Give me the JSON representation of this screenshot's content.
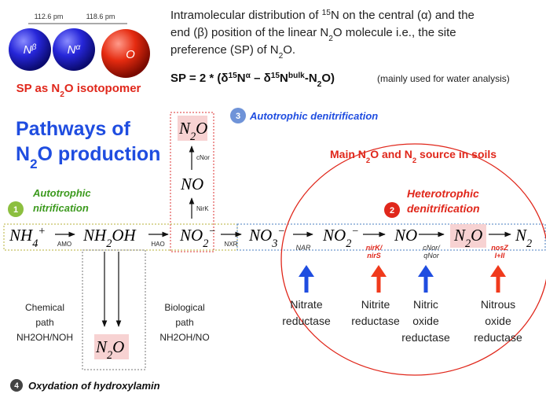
{
  "molecule": {
    "bond_lengths": [
      "112.6 pm",
      "118.6 pm"
    ],
    "atoms": [
      [
        "N",
        {
          "sup": "β"
        }
      ],
      [
        "N",
        {
          "sup": "α"
        }
      ],
      [
        "O"
      ]
    ],
    "caption": [
      "SP as N",
      {
        "sub": "2"
      },
      "O isotopomer"
    ]
  },
  "description": {
    "lines": [
      [
        "Intramolecular distribution of ",
        {
          "sup": "15"
        },
        "N on the central (α) and the"
      ],
      [
        "end (β) position of the linear N",
        {
          "sub": "2"
        },
        "O molecule i.e., the site"
      ],
      [
        "preference (SP) of N",
        {
          "sub": "2"
        },
        "O."
      ]
    ],
    "formula": [
      "SP = 2 * (δ",
      {
        "sup": "15"
      },
      "N",
      {
        "sup": "α"
      },
      " – δ",
      {
        "sup": "15"
      },
      "N",
      {
        "sup": "bulk"
      },
      "-N",
      {
        "sub": "2"
      },
      "O)"
    ],
    "note": "(mainly used for water analysis)"
  },
  "title": [
    [
      "Pathways of"
    ],
    [
      "N",
      {
        "sub": "2"
      },
      "O production"
    ]
  ],
  "pathways": [
    {
      "number": "1",
      "label": [
        "Autotrophic",
        "nitrification"
      ]
    },
    {
      "number": "2",
      "label": [
        "Heterotrophic",
        "denitrification"
      ]
    },
    {
      "number": "3",
      "label": [
        "Autotrophic denitrification"
      ]
    },
    {
      "number": "4",
      "label": [
        "Oxydation of hydroxylamin"
      ]
    }
  ],
  "soil_note": [
    "Main N",
    {
      "sub": "2"
    },
    "O and N",
    {
      "sub": "2"
    },
    " source in soils"
  ],
  "chain": {
    "species": [
      [
        "NH",
        {
          "sub": "4"
        },
        {
          "sup": "+"
        }
      ],
      [
        "NH",
        {
          "sub": "2"
        },
        "OH"
      ],
      [
        "NO",
        {
          "sub": "2"
        },
        {
          "sup": "−"
        }
      ],
      [
        "NO",
        {
          "sub": "3"
        },
        {
          "sup": "−"
        }
      ],
      [
        "NO",
        {
          "sub": "2"
        },
        {
          "sup": "−"
        }
      ],
      [
        "NO"
      ],
      [
        "N",
        {
          "sub": "2"
        },
        "O"
      ],
      [
        "N",
        {
          "sub": "2"
        }
      ]
    ],
    "enzymes": [
      [
        "AMO"
      ],
      [
        "HAO"
      ],
      [
        "NXR"
      ],
      [
        "NAR"
      ],
      [
        "nirK/",
        "nirS"
      ],
      [
        "cNor/",
        "qNor"
      ],
      [
        "nosZ",
        "I+II"
      ]
    ]
  },
  "autotrophic_branch": {
    "species": [
      [
        "N",
        {
          "sub": "2"
        },
        "O"
      ],
      [
        "NO"
      ]
    ],
    "enzymes": [
      "cNor",
      "NirK"
    ]
  },
  "chemical_path": [
    "Chemical",
    "path",
    "NH2OH/NOH"
  ],
  "biological_path": [
    "Biological",
    "path",
    "NH2OH/NO"
  ],
  "hydroxylamine_product": [
    "N",
    {
      "sub": "2"
    },
    "O"
  ],
  "reductases": [
    [
      "Nitrate",
      "reductase"
    ],
    [
      "Nitrite",
      "reductase"
    ],
    [
      "Nitric",
      "oxide",
      "reductase"
    ],
    [
      "Nitrous",
      "oxide",
      "reductase"
    ]
  ]
}
